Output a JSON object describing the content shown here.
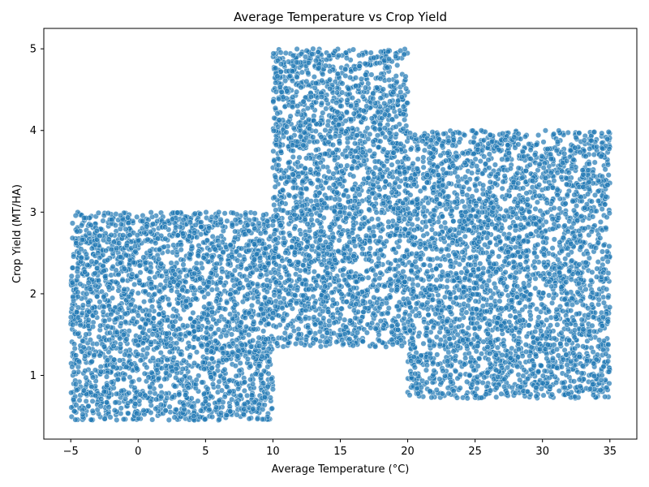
{
  "chart_data": {
    "type": "scatter",
    "title": "Average Temperature vs Crop Yield",
    "xlabel": "Average Temperature (°C)",
    "ylabel": "Crop Yield (MT/HA)",
    "xlim": [
      -7,
      37
    ],
    "ylim": [
      0.22,
      5.25
    ],
    "xticks": [
      -5,
      0,
      5,
      10,
      15,
      20,
      25,
      30,
      35
    ],
    "yticks": [
      1,
      2,
      3,
      4,
      5
    ],
    "grid": false,
    "legend": "none",
    "marker_color": "#1f77b4",
    "marker_edge_color": "#ffffff",
    "marker_alpha": 0.7,
    "series": [
      {
        "regions": [
          {
            "x_range": [
              -5,
              10
            ],
            "y_range": [
              0.45,
              3.0
            ],
            "approx_points": 2600
          },
          {
            "x_range": [
              10,
              20
            ],
            "y_range": [
              1.35,
              5.0
            ],
            "approx_points": 2400
          },
          {
            "x_range": [
              20,
              35
            ],
            "y_range": [
              0.72,
              4.0
            ],
            "approx_points": 3200
          }
        ]
      }
    ]
  }
}
